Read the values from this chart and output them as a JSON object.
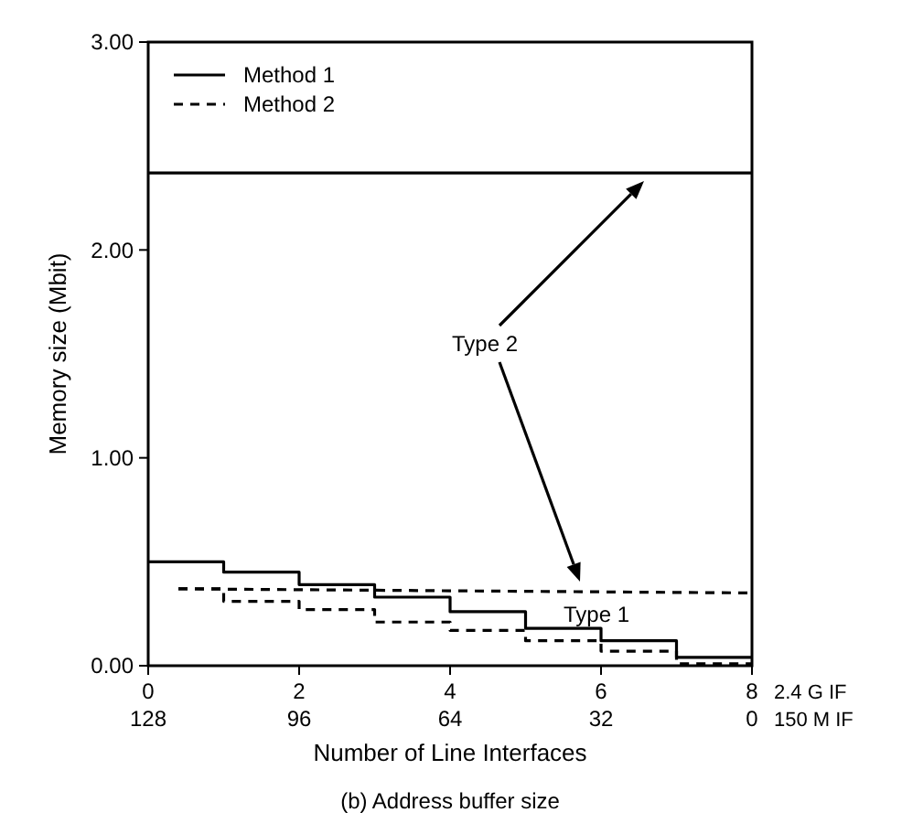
{
  "chart_data": {
    "type": "step",
    "title": "(b) Address buffer size",
    "xlabel": "Number of Line Interfaces",
    "ylabel": "Memory size (Mbit)",
    "x2label": "150 M IF",
    "xlim": [
      0,
      8
    ],
    "xticks": [
      0,
      2,
      4,
      6,
      8
    ],
    "x2lim": [
      128,
      0
    ],
    "x2ticks": [
      128,
      96,
      64,
      32,
      0
    ],
    "ylim": [
      0,
      3
    ],
    "yticks": [
      {
        "value": 0,
        "label": "0.00"
      },
      {
        "value": 1,
        "label": "1.00"
      },
      {
        "value": 2,
        "label": "2.00"
      },
      {
        "value": 3,
        "label": "3.00"
      }
    ],
    "grid": false,
    "legend": "top left",
    "annotations": [
      "2.4 G IF",
      "Type 2",
      "Type 1"
    ],
    "series": [
      {
        "name": "Method 1",
        "color": "#000000",
        "line_style": "solid",
        "x": [
          0,
          1,
          2,
          3,
          4,
          5,
          6,
          7,
          8
        ],
        "values": [
          0.5,
          0.45,
          0.39,
          0.33,
          0.26,
          0.18,
          0.12,
          0.04,
          0.04
        ]
      },
      {
        "name": "Method 2",
        "color": "#000000",
        "line_style": "dashed",
        "x": [
          0.4,
          1,
          2,
          3,
          4,
          5,
          6,
          7,
          8
        ],
        "values": [
          0.37,
          0.31,
          0.27,
          0.21,
          0.17,
          0.12,
          0.07,
          0.01,
          0.01
        ]
      },
      {
        "type": "line",
        "color": "#000000",
        "line_style": "solid",
        "x": [
          0,
          8
        ],
        "values": [
          2.37,
          2.37
        ]
      },
      {
        "type": "line",
        "color": "#000000",
        "line_style": "dashed",
        "x": [
          0.4,
          8
        ],
        "values": [
          0.37,
          0.35
        ]
      }
    ]
  }
}
